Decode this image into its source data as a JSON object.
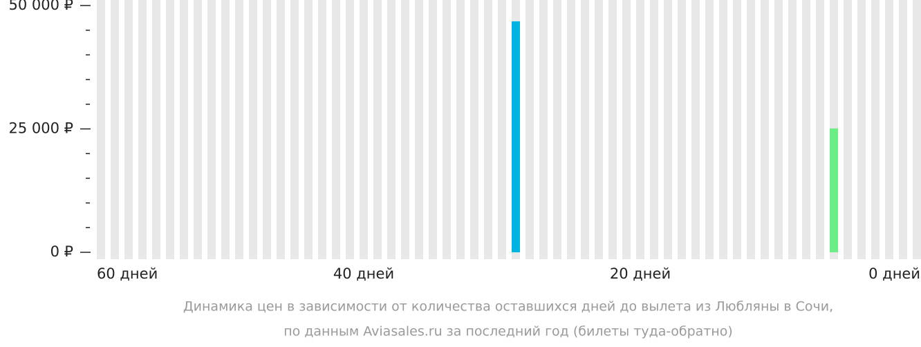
{
  "chart_data": {
    "type": "bar",
    "categories": [
      "60 дней",
      null,
      null,
      null,
      null,
      null,
      null,
      null,
      null,
      null,
      null,
      null,
      null,
      null,
      null,
      null,
      null,
      null,
      null,
      "40 дней",
      null,
      null,
      null,
      null,
      null,
      null,
      null,
      null,
      null,
      null,
      null,
      null,
      null,
      null,
      null,
      null,
      null,
      null,
      null,
      "20 дней",
      null,
      null,
      null,
      null,
      null,
      null,
      null,
      null,
      null,
      null,
      null,
      null,
      null,
      null,
      null,
      null,
      null,
      null,
      null,
      "0 дней"
    ],
    "values": [
      null,
      null,
      null,
      null,
      null,
      null,
      null,
      null,
      null,
      null,
      null,
      null,
      null,
      null,
      null,
      null,
      null,
      null,
      null,
      null,
      null,
      null,
      null,
      null,
      null,
      null,
      null,
      null,
      null,
      null,
      46800,
      null,
      null,
      null,
      null,
      null,
      null,
      null,
      null,
      null,
      null,
      null,
      null,
      null,
      null,
      null,
      null,
      null,
      null,
      null,
      null,
      null,
      null,
      25100,
      null,
      null,
      null,
      null,
      null,
      null
    ],
    "colors": [
      null,
      null,
      null,
      null,
      null,
      null,
      null,
      null,
      null,
      null,
      null,
      null,
      null,
      null,
      null,
      null,
      null,
      null,
      null,
      null,
      null,
      null,
      null,
      null,
      null,
      null,
      null,
      null,
      null,
      null,
      "#00b3e0",
      null,
      null,
      null,
      null,
      null,
      null,
      null,
      null,
      null,
      null,
      null,
      null,
      null,
      null,
      null,
      null,
      null,
      null,
      null,
      null,
      null,
      null,
      "#6ded86",
      null,
      null,
      null,
      null,
      null,
      null
    ],
    "ylim": [
      0,
      50000
    ],
    "yticks": [
      {
        "value": 0,
        "label": "0 ₽"
      },
      {
        "value": 25000,
        "label": "25 000 ₽"
      },
      {
        "value": 50000,
        "label": "50 000 ₽"
      }
    ],
    "caption": [
      "Динамика цен в зависимости от количества оставшихся дней до вылета из Любляны в Сочи,",
      "по данным Aviasales.ru за последний год (билеты туда-обратно)"
    ]
  }
}
